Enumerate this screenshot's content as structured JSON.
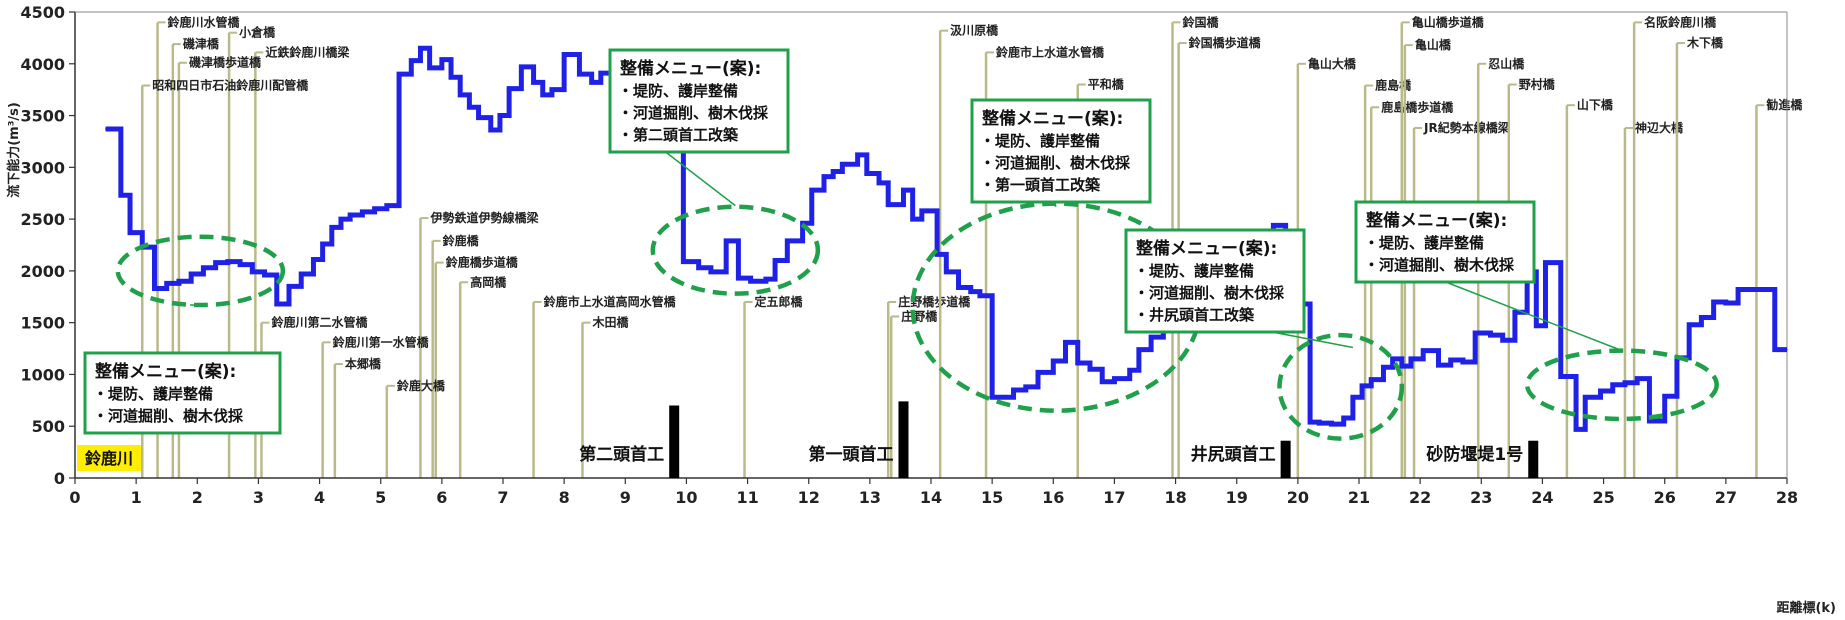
{
  "chart_data": {
    "type": "line",
    "step": true,
    "river_name": "鈴鹿川",
    "ylabel": "流下能力(m³/s)",
    "xlabel": "距離標(k)",
    "xlim": [
      0,
      28
    ],
    "ylim": [
      0,
      4500
    ],
    "x_ticks": [
      "0",
      "1",
      "2",
      "3",
      "4",
      "5",
      "6",
      "7",
      "8",
      "9",
      "10",
      "11",
      "12",
      "13",
      "14",
      "15",
      "16",
      "17",
      "18",
      "19",
      "20",
      "21",
      "22",
      "23",
      "24",
      "25",
      "26",
      "27",
      "28"
    ],
    "y_ticks": [
      "0",
      "500",
      "1000",
      "1500",
      "2000",
      "2500",
      "3000",
      "3500",
      "4000",
      "4500"
    ],
    "grid": false,
    "colors": {
      "series": "#1f22e6",
      "bridge_line": "#b9b98a",
      "menu": "#21a04b",
      "weir": "#000000",
      "river_tag": "#ffee00"
    },
    "series": [
      {
        "points": [
          [
            0.5,
            3370
          ],
          [
            0.75,
            2730
          ],
          [
            0.9,
            2370
          ],
          [
            1.1,
            2230
          ],
          [
            1.3,
            1830
          ],
          [
            1.5,
            1880
          ],
          [
            1.7,
            1900
          ],
          [
            1.9,
            1970
          ],
          [
            2.1,
            2030
          ],
          [
            2.3,
            2080
          ],
          [
            2.5,
            2090
          ],
          [
            2.7,
            2060
          ],
          [
            2.9,
            1990
          ],
          [
            3.1,
            1960
          ],
          [
            3.3,
            1680
          ],
          [
            3.5,
            1850
          ],
          [
            3.7,
            1970
          ],
          [
            3.9,
            2110
          ],
          [
            4.05,
            2260
          ],
          [
            4.2,
            2420
          ],
          [
            4.35,
            2500
          ],
          [
            4.5,
            2540
          ],
          [
            4.7,
            2570
          ],
          [
            4.9,
            2600
          ],
          [
            5.1,
            2630
          ],
          [
            5.3,
            3900
          ],
          [
            5.5,
            4030
          ],
          [
            5.65,
            4150
          ],
          [
            5.8,
            3960
          ],
          [
            6.0,
            4040
          ],
          [
            6.15,
            3870
          ],
          [
            6.3,
            3700
          ],
          [
            6.45,
            3580
          ],
          [
            6.6,
            3480
          ],
          [
            6.8,
            3360
          ],
          [
            6.95,
            3500
          ],
          [
            7.1,
            3760
          ],
          [
            7.3,
            3970
          ],
          [
            7.5,
            3820
          ],
          [
            7.65,
            3700
          ],
          [
            7.8,
            3750
          ],
          [
            8.0,
            4090
          ],
          [
            8.25,
            3900
          ],
          [
            8.45,
            3820
          ],
          [
            8.6,
            3910
          ],
          [
            8.8,
            3820
          ],
          [
            8.95,
            3900
          ],
          [
            9.1,
            3990
          ],
          [
            9.35,
            3890
          ],
          [
            9.95,
            2090
          ],
          [
            10.2,
            2030
          ],
          [
            10.4,
            1990
          ],
          [
            10.65,
            2290
          ],
          [
            10.85,
            1930
          ],
          [
            11.05,
            1900
          ],
          [
            11.3,
            1920
          ],
          [
            11.45,
            2100
          ],
          [
            11.65,
            2290
          ],
          [
            11.9,
            2460
          ],
          [
            12.05,
            2780
          ],
          [
            12.25,
            2910
          ],
          [
            12.4,
            2960
          ],
          [
            12.55,
            3030
          ],
          [
            12.8,
            3120
          ],
          [
            12.95,
            2940
          ],
          [
            13.15,
            2850
          ],
          [
            13.3,
            2640
          ],
          [
            13.55,
            2780
          ],
          [
            13.7,
            2500
          ],
          [
            13.85,
            2580
          ],
          [
            14.1,
            2160
          ],
          [
            14.25,
            1990
          ],
          [
            14.45,
            1840
          ],
          [
            14.65,
            1800
          ],
          [
            14.8,
            1760
          ],
          [
            15.0,
            780
          ],
          [
            15.35,
            850
          ],
          [
            15.55,
            880
          ],
          [
            15.75,
            1020
          ],
          [
            16.0,
            1130
          ],
          [
            16.2,
            1310
          ],
          [
            16.4,
            1110
          ],
          [
            16.6,
            1050
          ],
          [
            16.8,
            930
          ],
          [
            17.0,
            960
          ],
          [
            17.25,
            1040
          ],
          [
            17.4,
            1240
          ],
          [
            17.6,
            1360
          ],
          [
            17.8,
            1520
          ],
          [
            17.95,
            1590
          ],
          [
            18.1,
            1520
          ],
          [
            18.35,
            1640
          ],
          [
            18.6,
            1840
          ],
          [
            18.8,
            1680
          ],
          [
            19.0,
            1980
          ],
          [
            19.25,
            2070
          ],
          [
            19.45,
            2250
          ],
          [
            19.6,
            2440
          ],
          [
            19.8,
            1770
          ],
          [
            20.0,
            1680
          ],
          [
            20.2,
            540
          ],
          [
            20.35,
            530
          ],
          [
            20.55,
            520
          ],
          [
            20.75,
            580
          ],
          [
            20.9,
            780
          ],
          [
            21.05,
            890
          ],
          [
            21.2,
            950
          ],
          [
            21.4,
            1070
          ],
          [
            21.55,
            1150
          ],
          [
            21.7,
            1080
          ],
          [
            21.85,
            1150
          ],
          [
            22.05,
            1230
          ],
          [
            22.3,
            1090
          ],
          [
            22.5,
            1140
          ],
          [
            22.7,
            1120
          ],
          [
            22.9,
            1400
          ],
          [
            23.15,
            1380
          ],
          [
            23.35,
            1330
          ],
          [
            23.55,
            1600
          ],
          [
            23.75,
            1990
          ],
          [
            23.9,
            1470
          ],
          [
            24.05,
            2080
          ],
          [
            24.3,
            980
          ],
          [
            24.55,
            470
          ],
          [
            24.7,
            780
          ],
          [
            24.95,
            840
          ],
          [
            25.15,
            900
          ],
          [
            25.35,
            920
          ],
          [
            25.55,
            960
          ],
          [
            25.75,
            550
          ],
          [
            26.0,
            790
          ],
          [
            26.2,
            1160
          ],
          [
            26.4,
            1480
          ],
          [
            26.6,
            1550
          ],
          [
            26.8,
            1700
          ],
          [
            27.0,
            1690
          ],
          [
            27.2,
            1820
          ],
          [
            27.55,
            1820
          ],
          [
            27.8,
            1240
          ],
          [
            28.0,
            1240
          ]
        ]
      }
    ],
    "bridges": [
      {
        "label": "鈴鹿川水管橋",
        "x": 1.35,
        "top": 4400
      },
      {
        "label": "磯津橋",
        "x": 1.6,
        "top": 4190
      },
      {
        "label": "小倉橋",
        "x": 2.52,
        "top": 4300
      },
      {
        "label": "近鉄鈴鹿川橋梁",
        "x": 2.95,
        "top": 4110
      },
      {
        "label": "磯津橋歩道橋",
        "x": 1.7,
        "top": 4010
      },
      {
        "label": "昭和四日市石油鈴鹿川配管橋",
        "x": 1.1,
        "top": 3790
      },
      {
        "label": "伊勢鉄道伊勢線橋梁",
        "x": 5.65,
        "top": 2510
      },
      {
        "label": "鈴鹿橋",
        "x": 5.85,
        "top": 2290
      },
      {
        "label": "鈴鹿橋歩道橋",
        "x": 5.9,
        "top": 2080
      },
      {
        "label": "高岡橋",
        "x": 6.3,
        "top": 1890
      },
      {
        "label": "鈴鹿川第二水管橋",
        "x": 3.05,
        "top": 1500
      },
      {
        "label": "鈴鹿川第一水管橋",
        "x": 4.05,
        "top": 1310
      },
      {
        "label": "本郷橋",
        "x": 4.25,
        "top": 1100
      },
      {
        "label": "鈴鹿大橋",
        "x": 5.1,
        "top": 890
      },
      {
        "label": "鈴鹿市上水道高岡水管橋",
        "x": 7.5,
        "top": 1700
      },
      {
        "label": "木田橋",
        "x": 8.3,
        "top": 1500
      },
      {
        "label": "定五郎橋",
        "x": 10.95,
        "top": 1700
      },
      {
        "label": "庄野橋歩道橋",
        "x": 13.3,
        "top": 1700
      },
      {
        "label": "庄野橋",
        "x": 13.35,
        "top": 1560
      },
      {
        "label": "汲川原橋",
        "x": 14.15,
        "top": 4320
      },
      {
        "label": "鈴鹿市上水道水管橋",
        "x": 14.9,
        "top": 4110
      },
      {
        "label": "平和橋",
        "x": 16.4,
        "top": 3800
      },
      {
        "label": "鈴国橋",
        "x": 17.95,
        "top": 4400
      },
      {
        "label": "鈴国橋歩道橋",
        "x": 18.05,
        "top": 4200
      },
      {
        "label": "亀山大橋",
        "x": 20.0,
        "top": 4000
      },
      {
        "label": "鹿島橋",
        "x": 21.1,
        "top": 3790
      },
      {
        "label": "鹿島橋歩道橋",
        "x": 21.2,
        "top": 3580
      },
      {
        "label": "JR紀勢本線橋梁",
        "x": 21.9,
        "top": 3380
      },
      {
        "label": "亀山橋歩道橋",
        "x": 21.7,
        "top": 4400
      },
      {
        "label": "亀山橋",
        "x": 21.75,
        "top": 4180
      },
      {
        "label": "忍山橋",
        "x": 22.95,
        "top": 4000
      },
      {
        "label": "野村橋",
        "x": 23.45,
        "top": 3800
      },
      {
        "label": "山下橋",
        "x": 24.4,
        "top": 3600
      },
      {
        "label": "神辺大橋",
        "x": 25.35,
        "top": 3380
      },
      {
        "label": "名阪鈴鹿川橋",
        "x": 25.5,
        "top": 4400
      },
      {
        "label": "木下橋",
        "x": 26.2,
        "top": 4200
      },
      {
        "label": "勧進橋",
        "x": 27.5,
        "top": 3600
      }
    ],
    "weirs": [
      {
        "label": "第二頭首工",
        "x": 9.8,
        "height": 700
      },
      {
        "label": "第一頭首工",
        "x": 13.55,
        "height": 740
      },
      {
        "label": "井尻頭首工",
        "x": 19.8,
        "height": 360
      },
      {
        "label": "砂防堰堤1号",
        "x": 23.85,
        "height": 360
      }
    ],
    "menus": [
      {
        "title": "整備メニュー(案):",
        "items": [
          "・堤防、護岸整備",
          "・河道掘削、樹木伐採"
        ],
        "ellipse": {
          "cx": 2.05,
          "cy": 2000,
          "rx": 1.35,
          "ry": 330
        }
      },
      {
        "title": "整備メニュー(案):",
        "items": [
          "・堤防、護岸整備",
          "・河道掘削、樹木伐採",
          "・第二頭首工改築"
        ],
        "ellipse": {
          "cx": 10.8,
          "cy": 2200,
          "rx": 1.35,
          "ry": 420
        }
      },
      {
        "title": "整備メニュー(案):",
        "items": [
          "・堤防、護岸整備",
          "・河道掘削、樹木伐採",
          "・第一頭首工改築"
        ],
        "ellipse": {
          "cx": 16.05,
          "cy": 1650,
          "rx": 2.35,
          "ry": 1000
        }
      },
      {
        "title": "整備メニュー(案):",
        "items": [
          "・堤防、護岸整備",
          "・河道掘削、樹木伐採",
          "・井尻頭首工改築"
        ],
        "ellipse": {
          "cx": 20.7,
          "cy": 880,
          "rx": 1.0,
          "ry": 500
        }
      },
      {
        "title": "整備メニュー(案):",
        "items": [
          "・堤防、護岸整備",
          "・河道掘削、樹木伐採"
        ],
        "ellipse": {
          "cx": 25.3,
          "cy": 900,
          "rx": 1.55,
          "ry": 330
        }
      }
    ]
  }
}
